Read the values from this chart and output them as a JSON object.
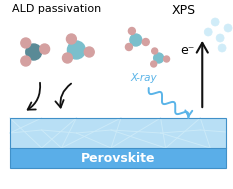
{
  "title_left": "ALD passivation",
  "title_right": "XPS",
  "label_perovskite": "Perovskite",
  "label_xray": "X-ray",
  "label_electron": "e⁻",
  "bg_color": "#ffffff",
  "perovskite_top_color": "#b8dff5",
  "perovskite_side_color": "#5aaee8",
  "grain_line_color": "#cceaf8",
  "xray_color": "#5ab4e8",
  "arrow_color": "#111111",
  "electron_dot_color": "#d0ecf8",
  "mol_large_color": "#7abfcc",
  "mol_small_color": "#d4a0a0",
  "mol_dark_color": "#5a8a96",
  "figsize": [
    2.33,
    1.89
  ],
  "dpi": 100
}
